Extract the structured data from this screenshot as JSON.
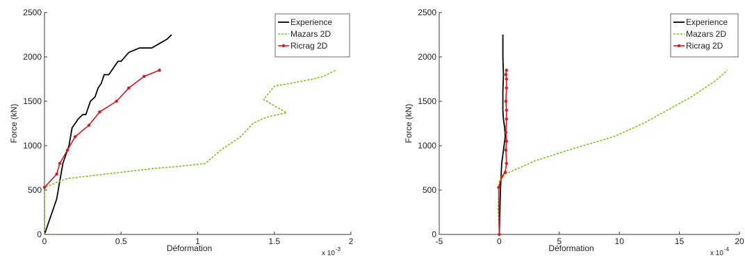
{
  "chart_data": [
    {
      "type": "line",
      "xlabel": "Déformation",
      "ylabel": "Force (kN)",
      "xlim": [
        0,
        2
      ],
      "ylim": [
        0,
        2500
      ],
      "x_ticks": [
        0,
        0.5,
        1,
        1.5,
        2
      ],
      "y_ticks": [
        0,
        500,
        1000,
        1500,
        2000,
        2500
      ],
      "x_multiplier": "x 10",
      "x_exponent": "-3",
      "grid": false,
      "legend_position": "top-right",
      "series": [
        {
          "name": "Experience",
          "color": "#000000",
          "x": [
            0,
            0.05,
            0.08,
            0.1,
            0.12,
            0.16,
            0.18,
            0.2,
            0.22,
            0.25,
            0.27,
            0.29,
            0.3,
            0.33,
            0.35,
            0.37,
            0.39,
            0.4,
            0.42,
            0.44,
            0.46,
            0.48,
            0.5,
            0.55,
            0.62,
            0.65,
            0.7,
            0.75,
            0.8,
            0.83
          ],
          "y": [
            0,
            250,
            400,
            600,
            800,
            1000,
            1200,
            1250,
            1300,
            1350,
            1350,
            1450,
            1500,
            1550,
            1650,
            1700,
            1800,
            1800,
            1800,
            1850,
            1900,
            1950,
            1950,
            2050,
            2100,
            2100,
            2100,
            2150,
            2200,
            2250
          ]
        },
        {
          "name": "Mazars 2D",
          "color": "#7cc318",
          "x": [
            0,
            0,
            0.1,
            0.15,
            0.3,
            0.5,
            0.7,
            0.9,
            1.05,
            1.15,
            1.28,
            1.36,
            1.42,
            1.47,
            1.58,
            1.43,
            1.5,
            1.6,
            1.75,
            1.82,
            1.9
          ],
          "y": [
            0,
            530,
            600,
            630,
            660,
            700,
            740,
            770,
            800,
            950,
            1100,
            1250,
            1300,
            1330,
            1370,
            1520,
            1670,
            1700,
            1750,
            1780,
            1850
          ]
        },
        {
          "name": "Ricrag 2D",
          "color": "#e0141e",
          "x": [
            0,
            0.08,
            0.1,
            0.15,
            0.2,
            0.29,
            0.36,
            0.47,
            0.55,
            0.65,
            0.75
          ],
          "y": [
            530,
            680,
            800,
            950,
            1100,
            1230,
            1380,
            1500,
            1650,
            1780,
            1850
          ]
        }
      ]
    },
    {
      "type": "line",
      "xlabel": "Déformation",
      "ylabel": "Force (kN)",
      "xlim": [
        -5,
        20
      ],
      "ylim": [
        0,
        2500
      ],
      "x_ticks": [
        -5,
        0,
        5,
        10,
        15,
        20
      ],
      "y_ticks": [
        0,
        500,
        1000,
        1500,
        2000,
        2500
      ],
      "x_multiplier": "x 10",
      "x_exponent": "-4",
      "grid": false,
      "legend_position": "top-right",
      "series": [
        {
          "name": "Experience",
          "color": "#000000",
          "x": [
            0,
            0.05,
            0.1,
            0.15,
            0.2,
            0.3,
            0.4,
            0.5,
            0.45,
            0.35,
            0.3,
            0.3,
            0.35,
            0.3,
            0.3
          ],
          "y": [
            0,
            250,
            500,
            650,
            800,
            900,
            1000,
            1100,
            1200,
            1300,
            1400,
            1600,
            1800,
            2000,
            2250
          ]
        },
        {
          "name": "Mazars 2D",
          "color": "#7cc318",
          "x": [
            0,
            -0.1,
            0,
            0.5,
            3,
            6,
            9.5,
            12,
            14,
            16,
            18,
            19
          ],
          "y": [
            0,
            300,
            600,
            680,
            830,
            960,
            1100,
            1250,
            1400,
            1550,
            1730,
            1850
          ]
        },
        {
          "name": "Ricrag 2D",
          "color": "#e0141e",
          "x": [
            0,
            -0.05,
            0.2,
            0.5,
            0.6,
            0.55,
            0.6,
            0.55,
            0.6,
            0.6,
            0.55,
            0.6,
            0.6,
            0.55,
            0.6
          ],
          "y": [
            0,
            530,
            650,
            700,
            800,
            950,
            1050,
            1150,
            1300,
            1400,
            1500,
            1650,
            1750,
            1800,
            1850
          ]
        }
      ]
    }
  ]
}
